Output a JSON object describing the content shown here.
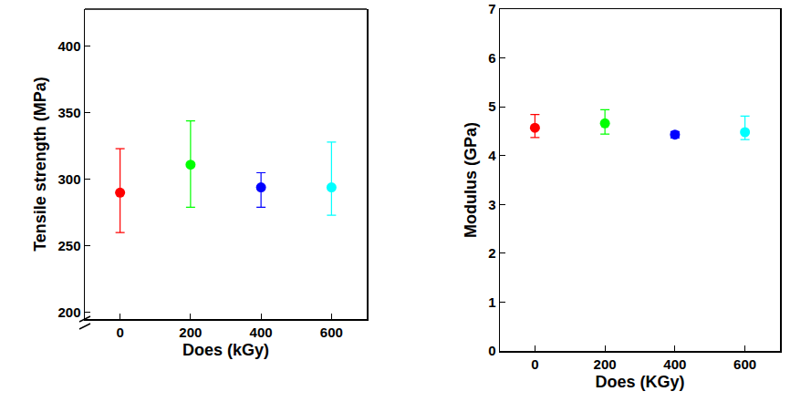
{
  "chart_data": [
    {
      "type": "scatter",
      "x_label": "Does (kGy)",
      "y_label": "Tensile strength (MPa)",
      "x": [
        0,
        200,
        400,
        600
      ],
      "values": [
        290,
        311,
        294,
        294
      ],
      "error_plus": [
        33,
        33,
        11,
        34
      ],
      "error_minus": [
        30,
        32,
        15,
        21
      ],
      "colors": [
        "#ff0000",
        "#00ff00",
        "#0000ff",
        "#00ffff"
      ],
      "marker": "circle",
      "xlim": [
        -100,
        700
      ],
      "xticks": [
        0,
        200,
        400,
        600
      ],
      "ylim": [
        0,
        428
      ],
      "ybreak": [
        12,
        195
      ],
      "yticks": [
        0,
        200,
        250,
        300,
        350,
        400
      ]
    },
    {
      "type": "scatter",
      "x_label": "Does (KGy)",
      "y_label": "Modulus (GPa)",
      "x": [
        0,
        200,
        400,
        600
      ],
      "values": [
        4.57,
        4.66,
        4.43,
        4.48
      ],
      "error_plus": [
        0.27,
        0.28,
        0.06,
        0.33
      ],
      "error_minus": [
        0.2,
        0.22,
        0.07,
        0.15
      ],
      "colors": [
        "#ff0000",
        "#00ff00",
        "#0000ff",
        "#00ffff"
      ],
      "marker": "circle",
      "xlim": [
        -100,
        700
      ],
      "xticks": [
        0,
        200,
        400,
        600
      ],
      "ylim": [
        0,
        7
      ],
      "yticks": [
        0,
        1,
        2,
        3,
        4,
        5,
        6,
        7
      ]
    }
  ]
}
